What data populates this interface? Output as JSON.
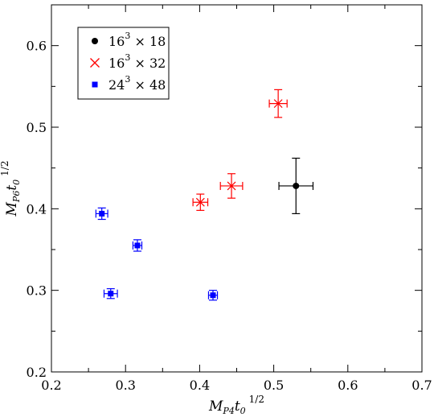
{
  "chart_data": {
    "type": "scatter",
    "xlim": [
      0.2,
      0.7
    ],
    "ylim": [
      0.2,
      0.65
    ],
    "x_ticks": [
      0.2,
      0.3,
      0.4,
      0.5,
      0.6,
      0.7
    ],
    "x_tick_labels": [
      "0.2",
      "0.3",
      "0.4",
      "0.5",
      "0.6",
      "0.7"
    ],
    "y_ticks": [
      0.2,
      0.3,
      0.4,
      0.5,
      0.6
    ],
    "y_tick_labels": [
      "0.2",
      "0.3",
      "0.4",
      "0.5",
      "0.6"
    ],
    "xlabel": {
      "main": "M",
      "sub": "P4",
      "main2": "t",
      "sub2": "0",
      "sup": "1/2"
    },
    "ylabel": {
      "main": "M",
      "sub": "P6",
      "main2": "t",
      "sub2": "0",
      "sup": "1/2"
    },
    "grid": false,
    "legend_position": "top-left",
    "series": [
      {
        "legend": {
          "base": "16",
          "exp": "3",
          "rest": " × 18"
        },
        "marker": "circle",
        "color": "#000000",
        "points": [
          {
            "x": 0.53,
            "y": 0.428,
            "xerr": 0.023,
            "yerr": 0.034
          }
        ]
      },
      {
        "legend": {
          "base": "16",
          "exp": "3",
          "rest": " × 32"
        },
        "marker": "x",
        "color": "#ff0000",
        "points": [
          {
            "x": 0.401,
            "y": 0.408,
            "xerr": 0.01,
            "yerr": 0.01
          },
          {
            "x": 0.443,
            "y": 0.428,
            "xerr": 0.015,
            "yerr": 0.015
          },
          {
            "x": 0.506,
            "y": 0.529,
            "xerr": 0.012,
            "yerr": 0.017
          }
        ]
      },
      {
        "legend": {
          "base": "24",
          "exp": "3",
          "rest": " × 48"
        },
        "marker": "square",
        "color": "#0000ff",
        "points": [
          {
            "x": 0.268,
            "y": 0.394,
            "xerr": 0.008,
            "yerr": 0.007
          },
          {
            "x": 0.28,
            "y": 0.296,
            "xerr": 0.009,
            "yerr": 0.006
          },
          {
            "x": 0.316,
            "y": 0.355,
            "xerr": 0.006,
            "yerr": 0.007
          },
          {
            "x": 0.418,
            "y": 0.294,
            "xerr": 0.006,
            "yerr": 0.006
          }
        ]
      }
    ]
  }
}
